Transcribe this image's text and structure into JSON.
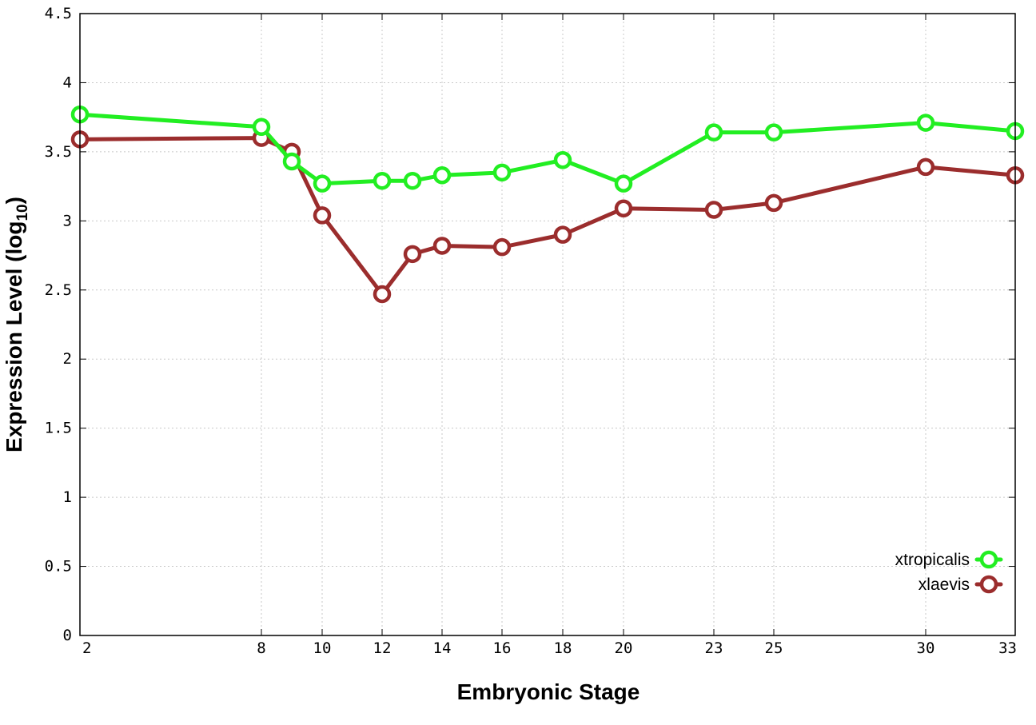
{
  "chart_data": {
    "type": "line",
    "title": "",
    "xlabel": "Embryonic Stage",
    "ylabel_main": "Expression Level (log",
    "ylabel_sub": "10",
    "ylabel_close": ")",
    "x_scale": "categorical, positioned by stage number",
    "xlim": [
      2,
      33
    ],
    "ylim": [
      0,
      4.5
    ],
    "x_ticks": [
      2,
      8,
      10,
      12,
      14,
      16,
      18,
      20,
      23,
      25,
      30,
      33
    ],
    "y_ticks": [
      0,
      0.5,
      1,
      1.5,
      2,
      2.5,
      3,
      3.5,
      4,
      4.5
    ],
    "y_tick_labels": [
      "0",
      "0.5",
      "1",
      "1.5",
      "2",
      "2.5",
      "3",
      "3.5",
      "4",
      "4.5"
    ],
    "grid": true,
    "legend_position": "bottom-right",
    "x": [
      2,
      8,
      9,
      10,
      12,
      13,
      14,
      16,
      18,
      20,
      23,
      25,
      30,
      33
    ],
    "series": [
      {
        "name": "xtropicalis",
        "color": "#22ee22",
        "values": [
          3.77,
          3.68,
          3.43,
          3.27,
          3.29,
          3.29,
          3.33,
          3.35,
          3.44,
          3.27,
          3.64,
          3.64,
          3.71,
          3.65
        ]
      },
      {
        "name": "xlaevis",
        "color": "#9b2d2d",
        "values": [
          3.59,
          3.6,
          3.5,
          3.04,
          2.47,
          2.76,
          2.82,
          2.81,
          2.9,
          3.09,
          3.08,
          3.13,
          3.39,
          3.33
        ]
      }
    ]
  }
}
